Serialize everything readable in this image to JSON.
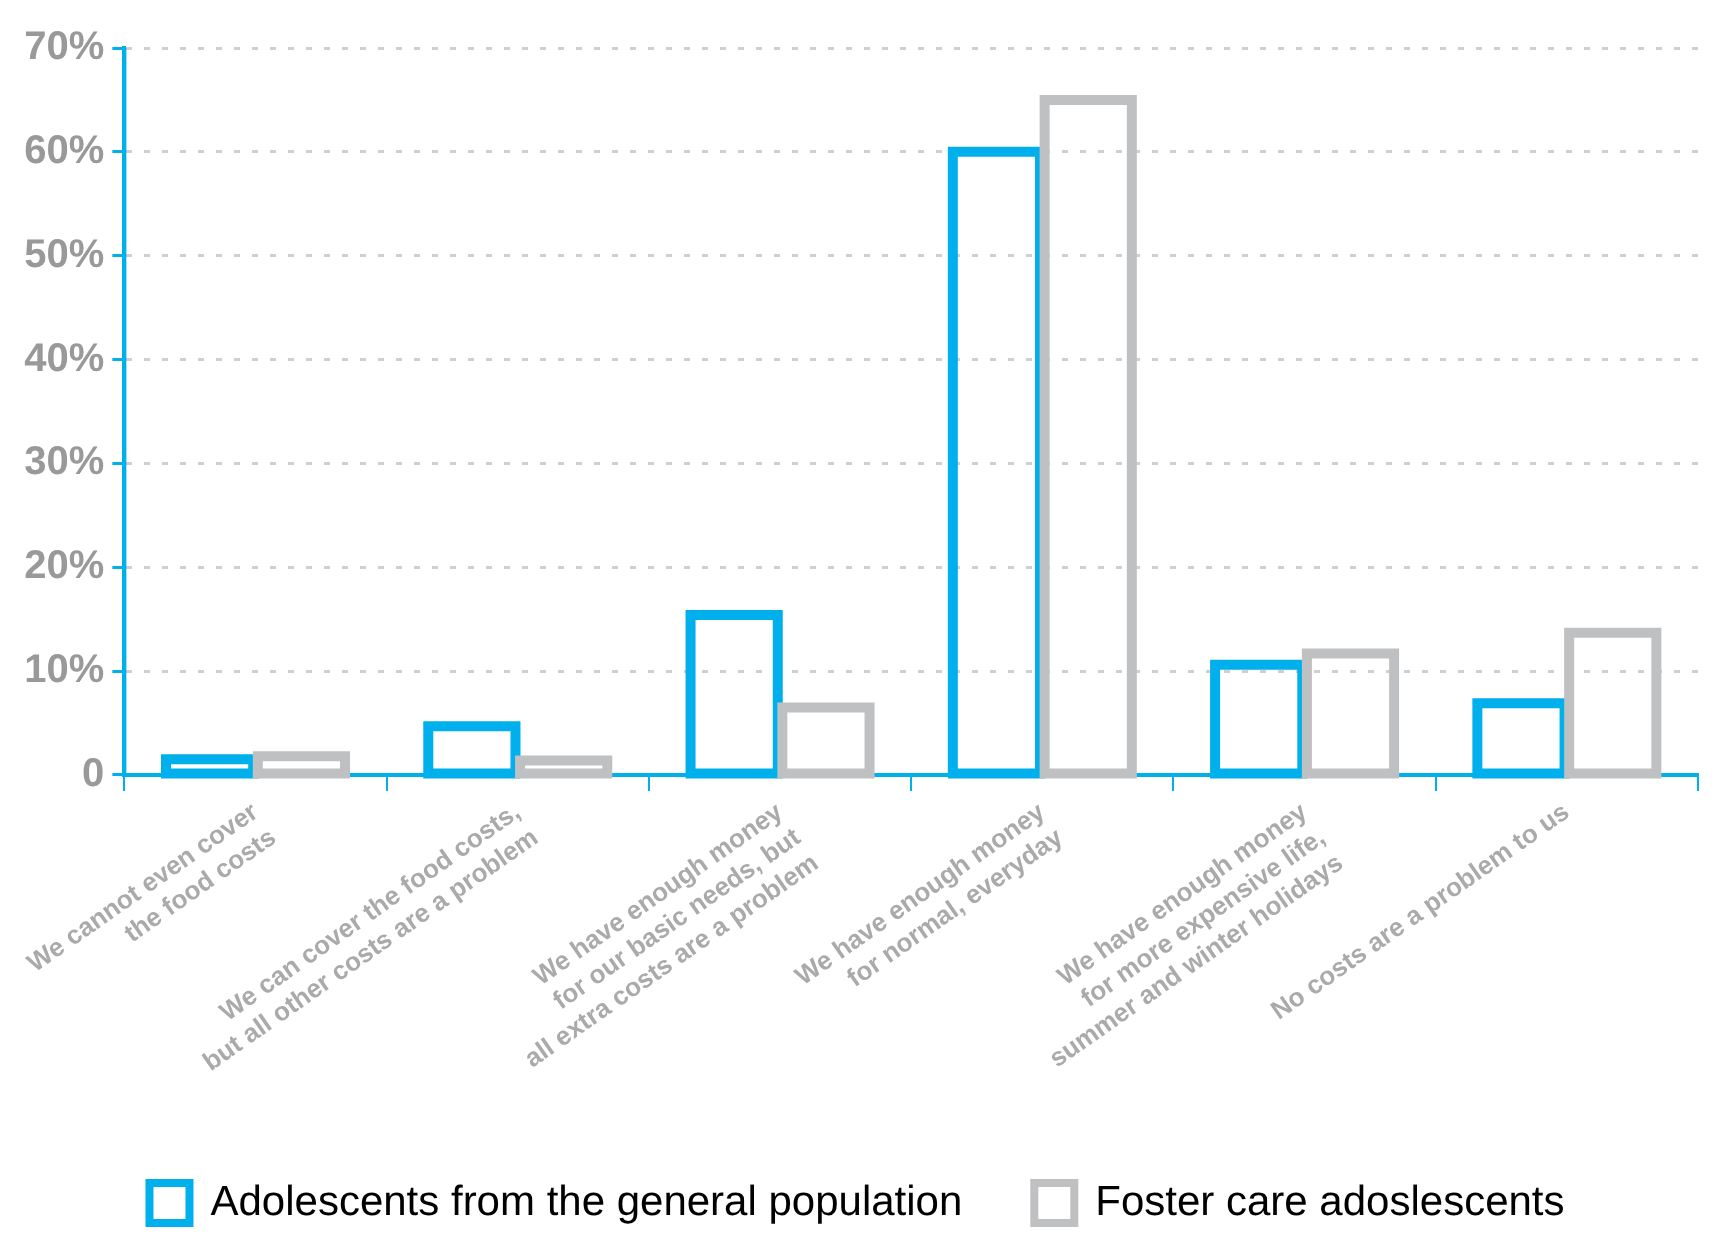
{
  "chart_data": {
    "type": "bar",
    "categories": [
      "We cannot even cover\nthe food costs",
      "We can cover the food costs,\nbut all other costs are a problem",
      "We have enough money\nfor our basic needs, but\nall extra costs are a problem",
      "We have enough money\nfor normal, everyday",
      "We have enough money\nfor more expensive life,\nsummer and winter holidays",
      "No costs are a problem to us"
    ],
    "series": [
      {
        "name": "Adolescents from the general population",
        "color": "#00b0ec",
        "values": [
          1.5,
          4.7,
          15.4,
          60,
          10.6,
          6.9
        ]
      },
      {
        "name": "Foster care adoslescents",
        "color": "#bfc0c2",
        "values": [
          1.8,
          1.4,
          6.5,
          65,
          11.7,
          13.7
        ]
      }
    ],
    "ylim": [
      0,
      70
    ],
    "yticks": [
      0,
      {
        "value": 10,
        "label": "10%"
      },
      {
        "value": 20,
        "label": "20%"
      },
      {
        "value": 30,
        "label": "30%"
      },
      {
        "value": 40,
        "label": "40%"
      },
      {
        "value": 50,
        "label": "50%"
      },
      {
        "value": 60,
        "label": "60%"
      },
      {
        "value": 70,
        "label": "70%"
      }
    ],
    "grid": "y",
    "legend": "bottom"
  }
}
